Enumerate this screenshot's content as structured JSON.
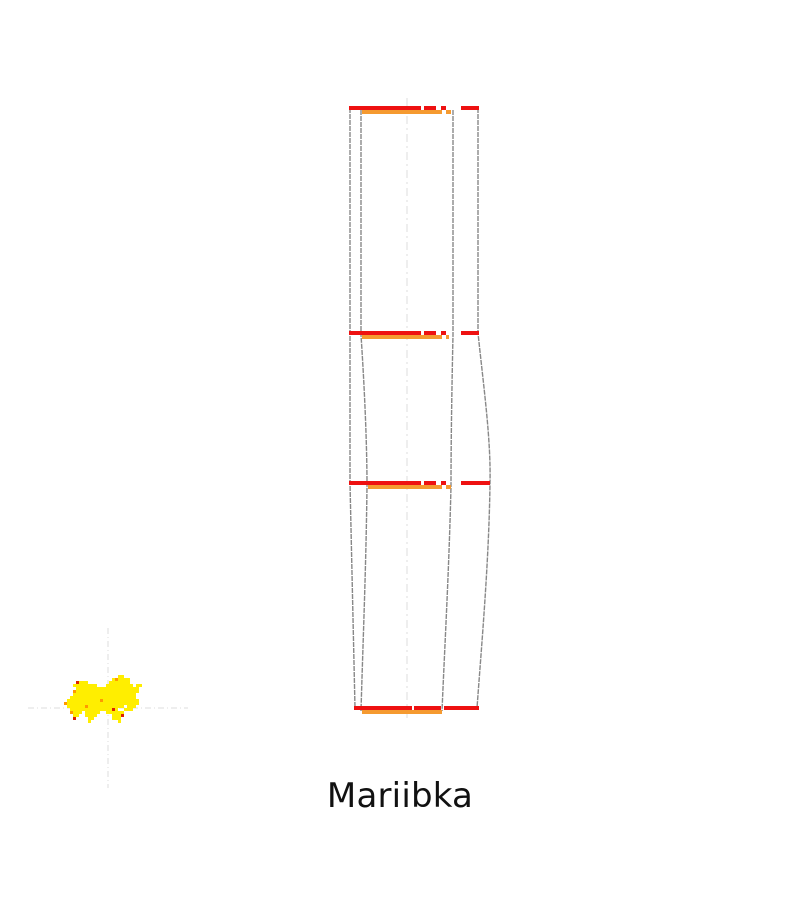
{
  "caption": "Mariibka",
  "colors": {
    "background": "#ffffff",
    "outer_band": "#ee1111",
    "inner_band": "#f59a30",
    "outline": "#888888",
    "axis": "#dddddd",
    "blob_main": "#ffee00",
    "blob_accent": "#ff9900",
    "blob_dark": "#dd2200"
  },
  "elements": [
    "profile-level-top",
    "profile-level-upper-middle",
    "profile-level-lower-middle",
    "profile-level-bottom",
    "outer-outline",
    "inner-outline",
    "center-axis",
    "plan-view-blob"
  ]
}
